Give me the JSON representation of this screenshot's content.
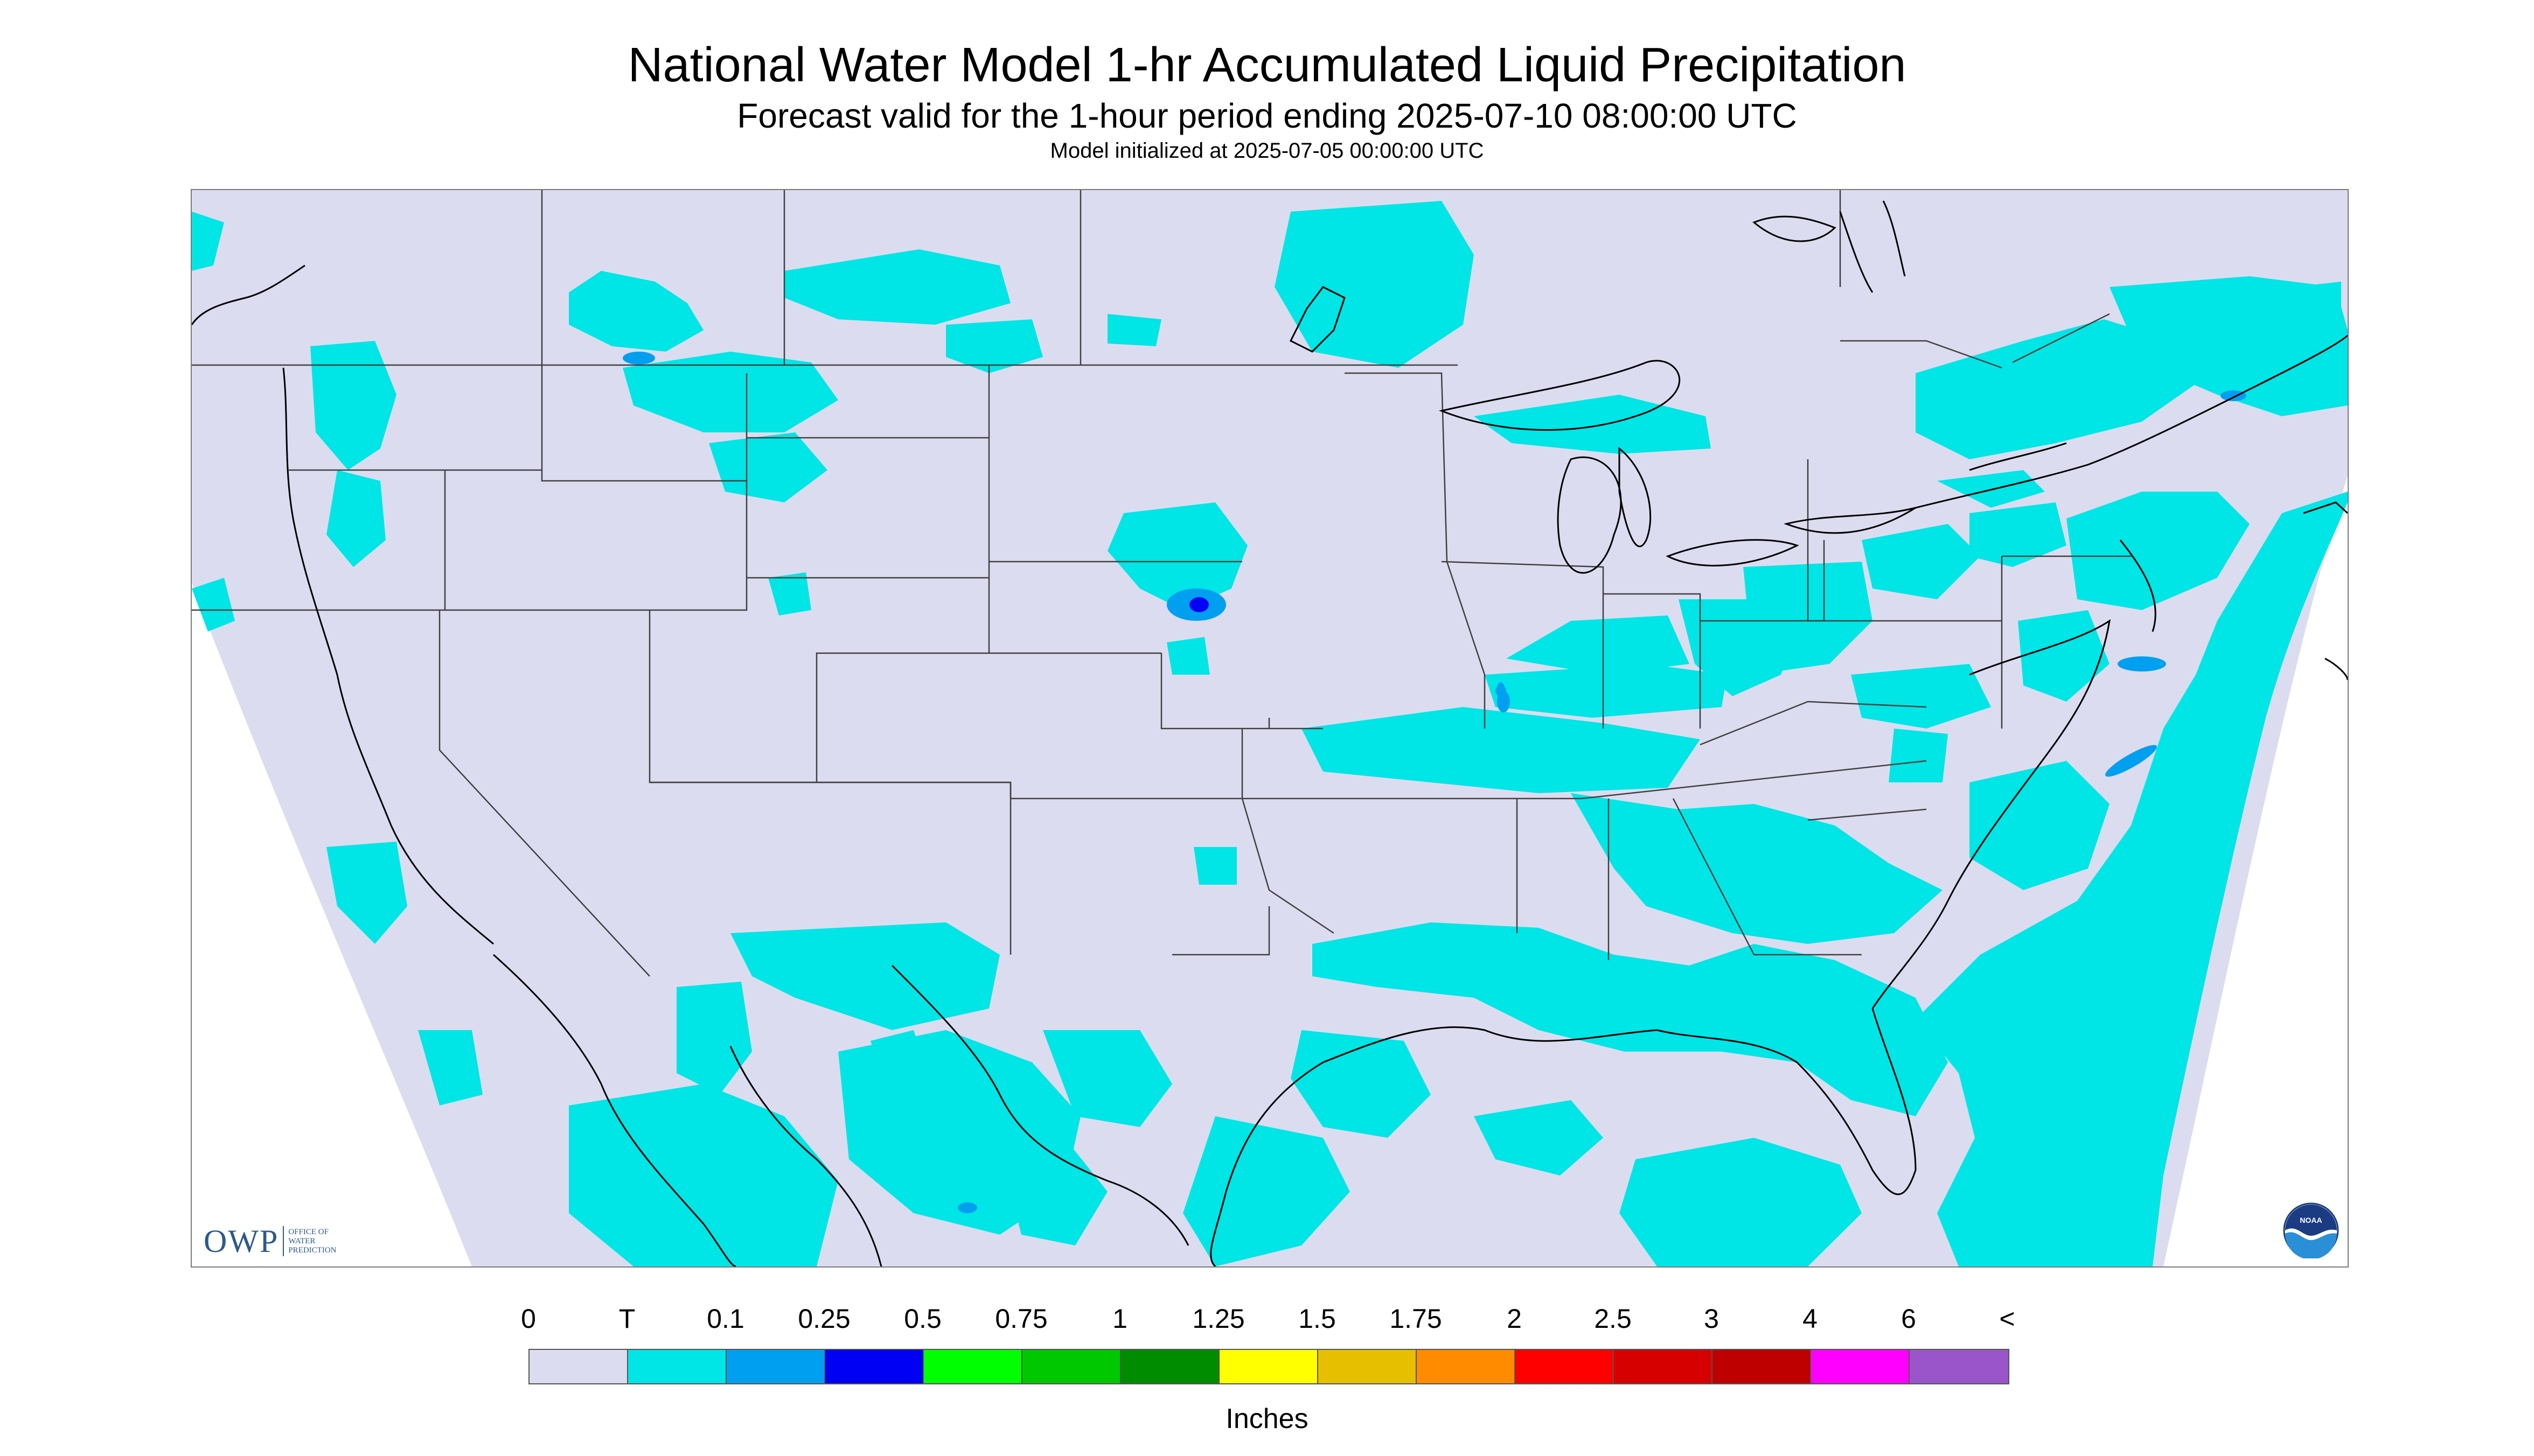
{
  "title": "National Water Model 1-hr Accumulated Liquid Precipitation",
  "subtitle": "Forecast valid for the 1-hour period ending 2025-07-10 08:00:00 UTC",
  "init_line": "Model initialized at 2025-07-05 00:00:00 UTC",
  "logos": {
    "owp_text": "OWP",
    "owp_subtext": [
      "OFFICE OF",
      "WATER",
      "PREDICTION"
    ],
    "noaa_text": "NOAA"
  },
  "legend": {
    "labels": [
      "0",
      "T",
      "0.1",
      "0.25",
      "0.5",
      "0.75",
      "1",
      "1.25",
      "1.5",
      "1.75",
      "2",
      "2.5",
      "3",
      "4",
      "6",
      "<"
    ],
    "colors": [
      "#dcdcf0",
      "#00e5e5",
      "#009ff0",
      "#0000f5",
      "#00ff00",
      "#00c800",
      "#008c00",
      "#ffff00",
      "#e6c000",
      "#ff8c00",
      "#ff0000",
      "#d70000",
      "#be0000",
      "#ff00ff",
      "#9955c9"
    ],
    "units": "Inches"
  },
  "map_colors": {
    "nodata": "#ffffff",
    "zero": "#dcdcf0",
    "trace": "#00e5e5",
    "light_blue": "#009ff0",
    "blue": "#0000f5",
    "borders": "#404040",
    "coast": "#000000"
  }
}
